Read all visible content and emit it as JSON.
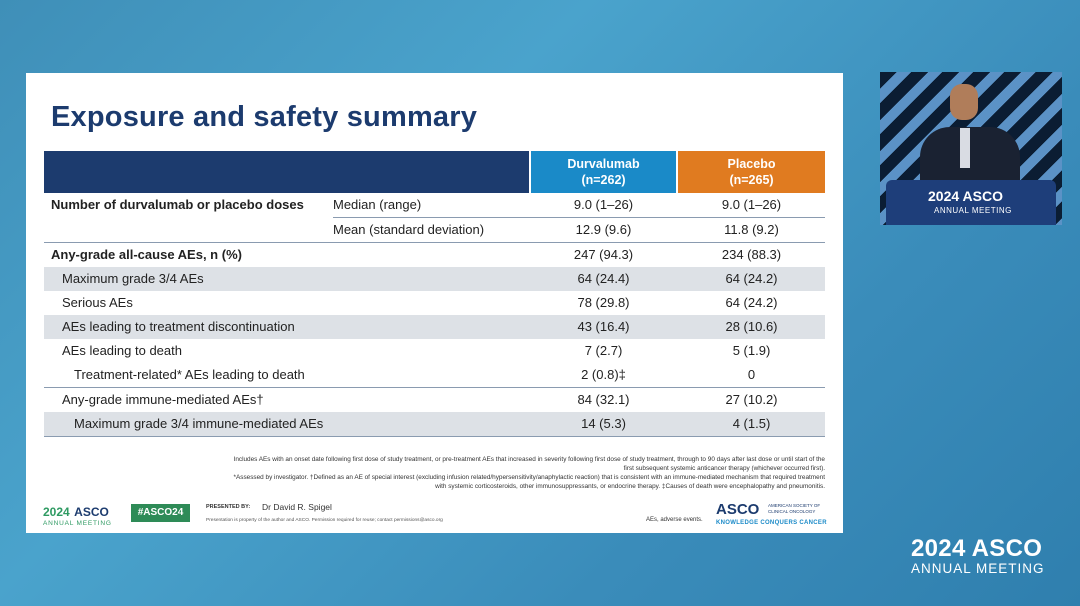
{
  "slide": {
    "title": "Exposure and safety summary",
    "table": {
      "col_durva": "Durvalumab\n(n=262)",
      "col_placebo": "Placebo\n(n=265)",
      "rows": [
        {
          "label": "Number of durvalumab or placebo doses",
          "sub": "Median (range)",
          "durva": "9.0 (1–26)",
          "placebo": "9.0 (1–26)"
        },
        {
          "label": "",
          "sub": "Mean (standard deviation)",
          "durva": "12.9 (9.6)",
          "placebo": "11.8 (9.2)"
        },
        {
          "label": "Any-grade all-cause AEs, n (%)",
          "sub": "",
          "durva": "247 (94.3)",
          "placebo": "234 (88.3)"
        },
        {
          "label": "Maximum grade 3/4 AEs",
          "sub": "",
          "durva": "64 (24.4)",
          "placebo": "64 (24.2)"
        },
        {
          "label": "Serious AEs",
          "sub": "",
          "durva": "78 (29.8)",
          "placebo": "64 (24.2)"
        },
        {
          "label": "AEs leading to treatment discontinuation",
          "sub": "",
          "durva": "43 (16.4)",
          "placebo": "28 (10.6)"
        },
        {
          "label": "AEs leading to death",
          "sub": "",
          "durva": "7 (2.7)",
          "placebo": "5 (1.9)"
        },
        {
          "label": "Treatment-related* AEs leading to death",
          "sub": "",
          "durva": "2 (0.8)‡",
          "placebo": "0"
        },
        {
          "label": "Any-grade immune-mediated AEs†",
          "sub": "",
          "durva": "84 (32.1)",
          "placebo": "27 (10.2)"
        },
        {
          "label": "Maximum grade 3/4 immune-mediated AEs",
          "sub": "",
          "durva": "14 (5.3)",
          "placebo": "4 (1.5)"
        }
      ]
    },
    "footnotes": [
      "Includes AEs with an onset date following first dose of study treatment, or pre-treatment AEs that increased in severity following first dose of study treatment, through to 90 days after last dose or until start of the first subsequent systemic anticancer therapy (whichever occurred first).",
      "*Assessed by investigator. †Defined as an AE of special interest (excluding infusion related/hypersensitivity/anaphylactic reaction) that is consistent with an immune-mediated mechanism that required treatment with systemic corticosteroids, other immunosuppressants, or endocrine therapy. ‡Causes of death were encephalopathy and pneumonitis."
    ],
    "logo_year": "2024",
    "logo_brand": "ASCO",
    "logo_sub": "ANNUAL MEETING",
    "hashtag": "#ASCO24",
    "presented_by": "PRESENTED BY:",
    "presenter": "Dr David R. Spigel",
    "property_note": "Presentation is property of the author and ASCO. Permission required for reuse; contact permissions@asco.org",
    "abbreviation": "AEs, adverse events.",
    "asco_brand": "ASCO",
    "asco_society": "AMERICAN SOCIETY OF CLINICAL ONCOLOGY",
    "asco_tagline": "KNOWLEDGE CONQUERS CANCER"
  },
  "video": {
    "podium_title": "2024 ASCO",
    "podium_sub": "ANNUAL MEETING"
  },
  "watermark": {
    "title": "2024 ASCO",
    "sub": "ANNUAL MEETING"
  }
}
